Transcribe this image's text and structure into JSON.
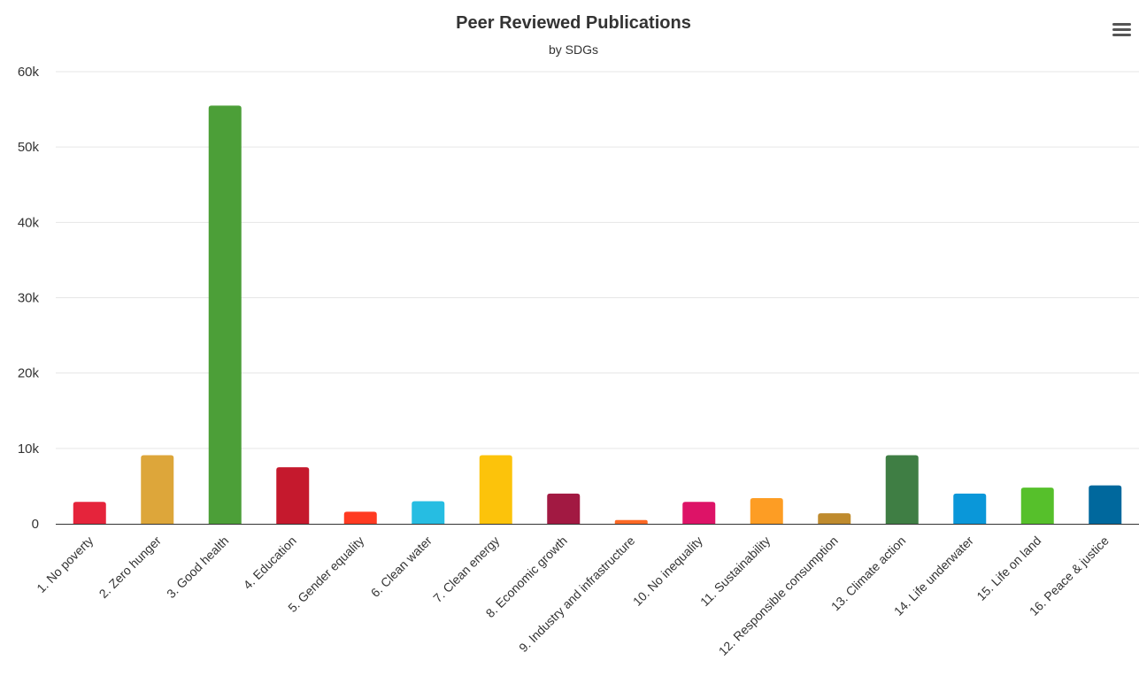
{
  "menu": {
    "icon": "hamburger-menu-icon"
  },
  "chart_data": {
    "type": "bar",
    "title": "Peer Reviewed Publications",
    "subtitle": "by SDGs",
    "xlabel": "",
    "ylabel": "",
    "ylim": [
      0,
      60000
    ],
    "yticks": [
      {
        "value": 0,
        "label": "0"
      },
      {
        "value": 10000,
        "label": "10k"
      },
      {
        "value": 20000,
        "label": "20k"
      },
      {
        "value": 30000,
        "label": "30k"
      },
      {
        "value": 40000,
        "label": "40k"
      },
      {
        "value": 50000,
        "label": "50k"
      },
      {
        "value": 60000,
        "label": "60k"
      }
    ],
    "grid": true,
    "legend": "none",
    "categories": [
      "1. No poverty",
      "2. Zero hunger",
      "3. Good health",
      "4. Education",
      "5. Gender equality",
      "6. Clean water",
      "7. Clean energy",
      "8. Economic growth",
      "9. Industry and infrastructure",
      "10. No inequality",
      "11. Sustainability",
      "12. Responsible consumption",
      "13. Climate action",
      "14. Life underwater",
      "15. Life on land",
      "16. Peace & justice"
    ],
    "values": [
      2900,
      9100,
      55500,
      7500,
      1600,
      3000,
      9100,
      4000,
      500,
      2900,
      3400,
      1400,
      9100,
      4000,
      4800,
      5100
    ],
    "colors": [
      "#e5243b",
      "#dda63a",
      "#4c9f38",
      "#c5192d",
      "#ff3a21",
      "#26bde2",
      "#fcc30b",
      "#a21942",
      "#fd6925",
      "#dd1367",
      "#fd9d24",
      "#bf8b2e",
      "#3f7e44",
      "#0a97d9",
      "#56c02b",
      "#00689d"
    ]
  }
}
